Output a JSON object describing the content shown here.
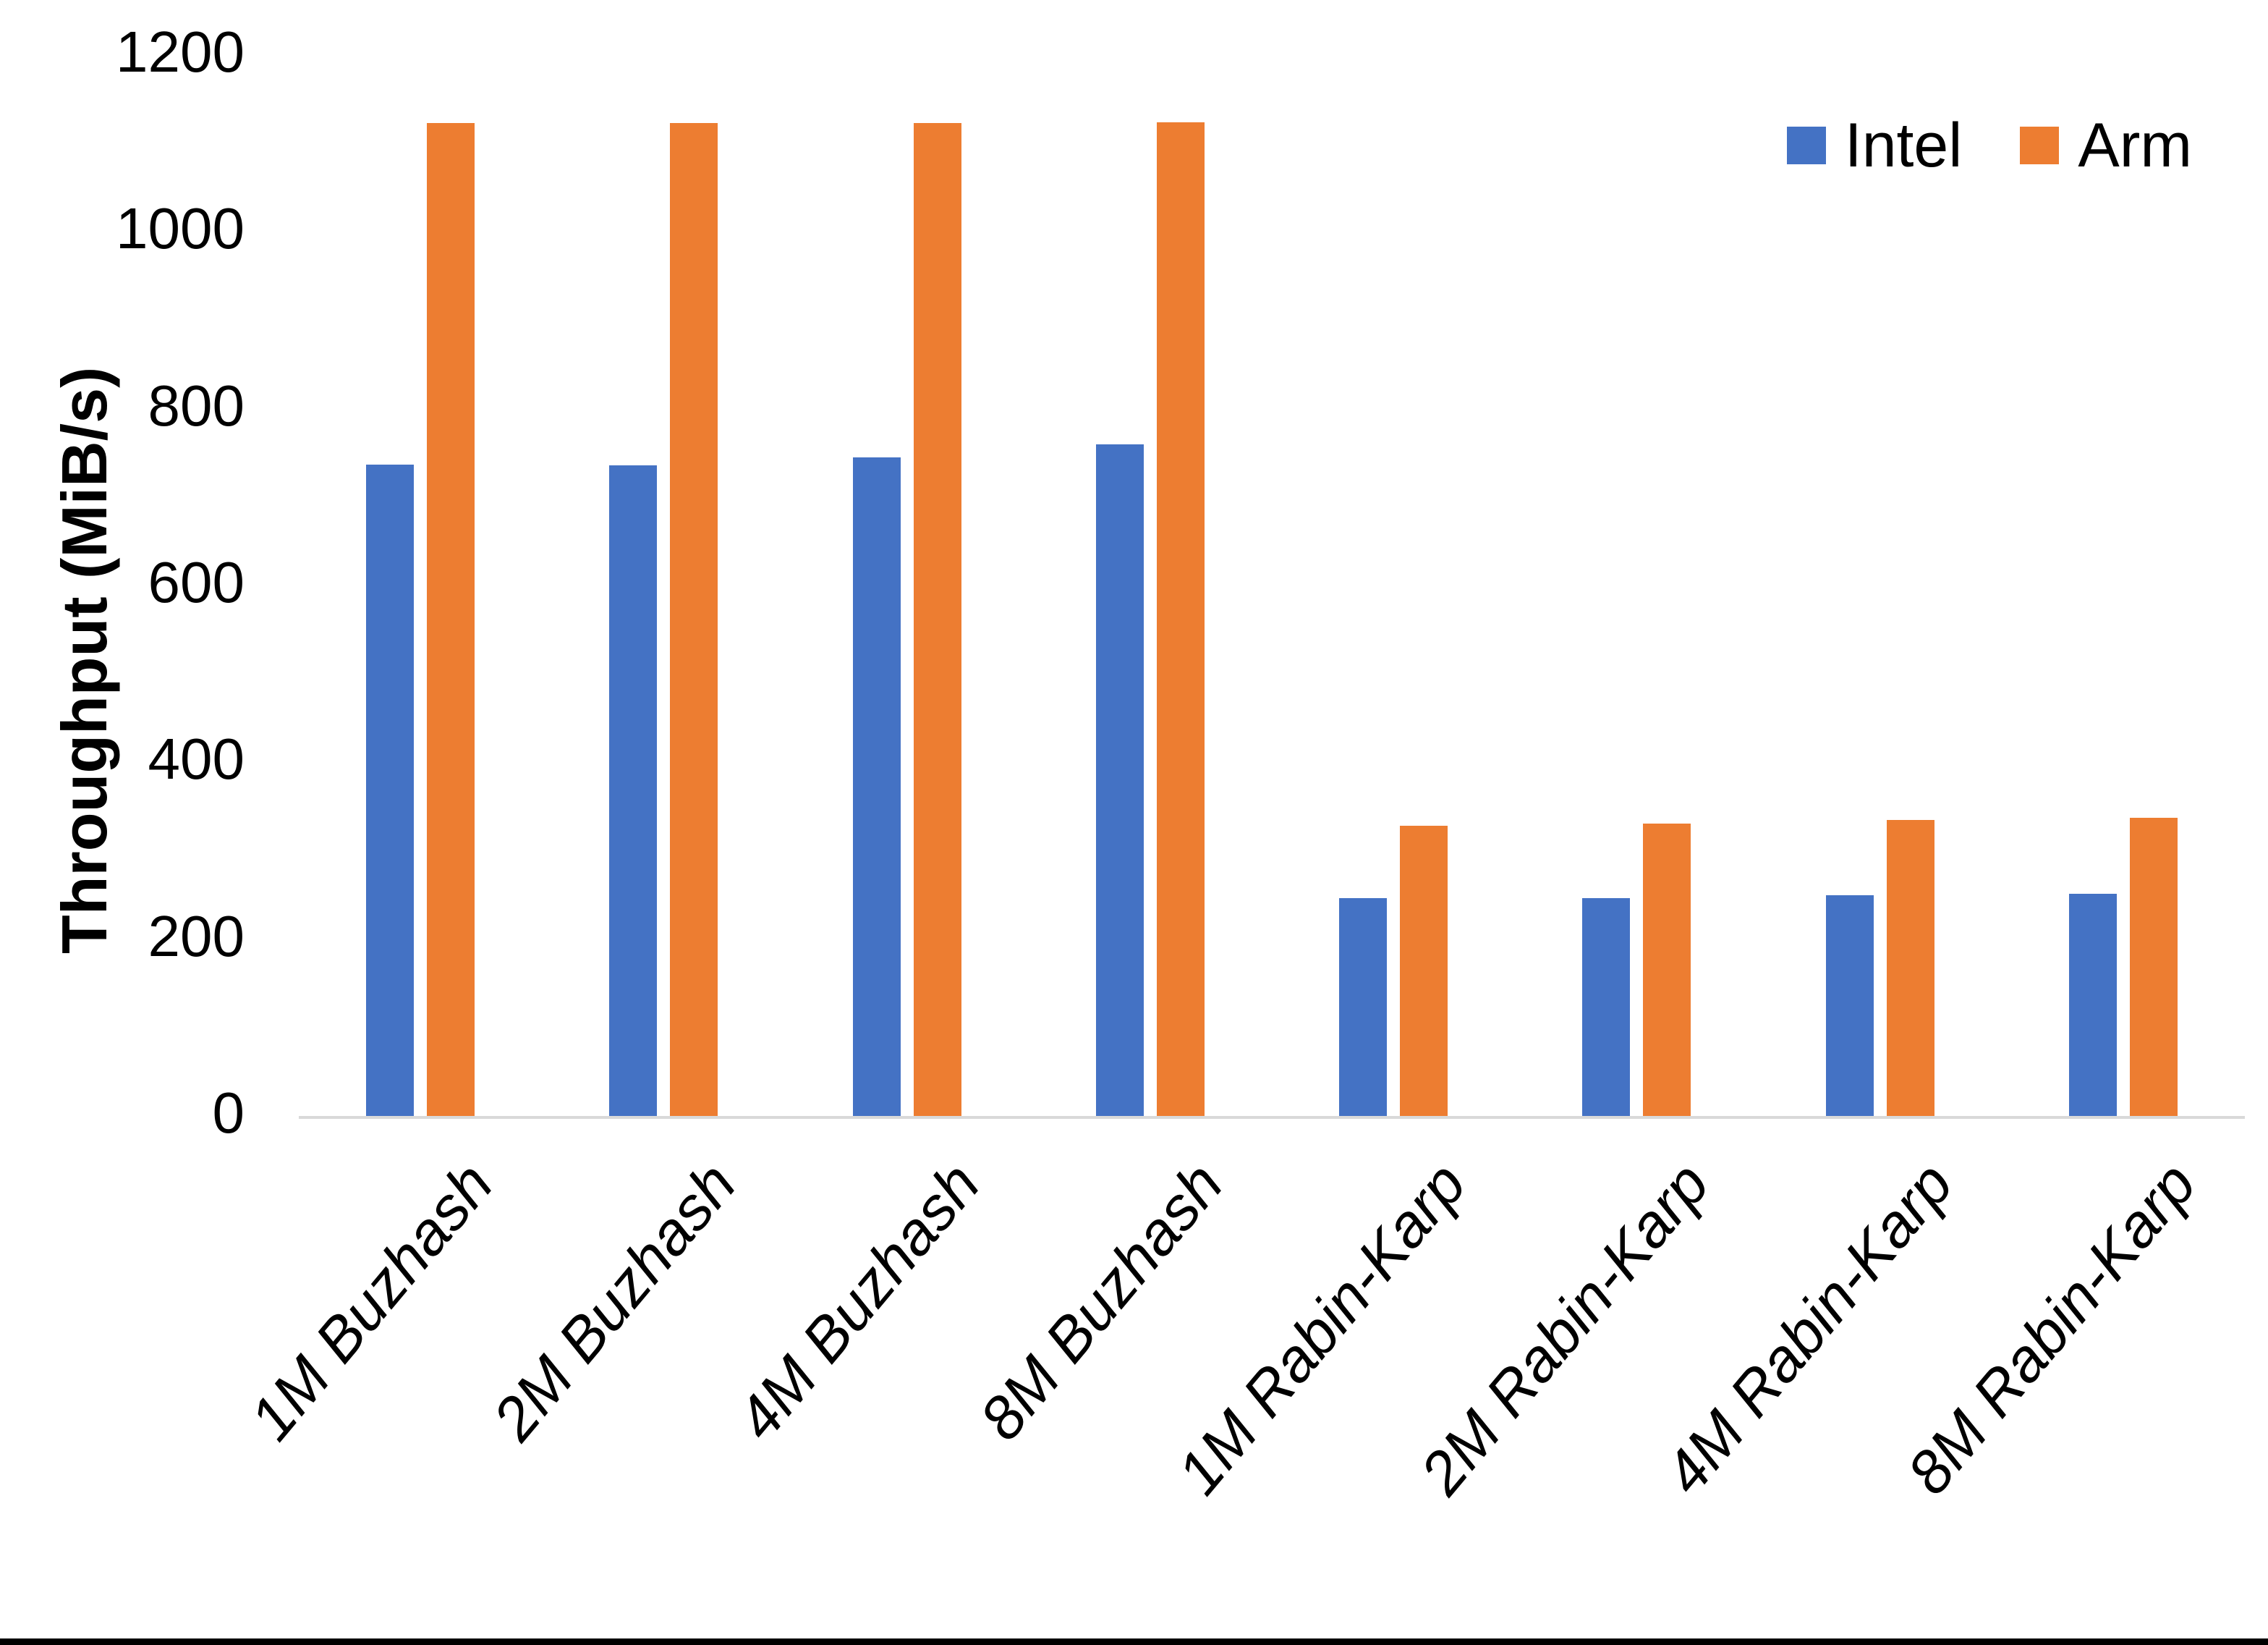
{
  "figure": {
    "background_color": "#ffffff",
    "axis_line_color": "#D9D9D9",
    "bottom_edge_color": "#000000",
    "text_color": "#000000"
  },
  "legend": {
    "position": "top-right",
    "items": [
      {
        "label": "Intel",
        "color": "#4472C4"
      },
      {
        "label": "Arm",
        "color": "#ED7D31"
      }
    ]
  },
  "chart_data": {
    "type": "bar",
    "title": "",
    "xlabel": "",
    "ylabel": "Throughput (MiB/s)",
    "categories": [
      "1M Buzhash",
      "2M Buzhash",
      "4M Buzhash",
      "8M Buzhash",
      "1M Rabin-Karp",
      "2M Rabin-Karp",
      "4M Rabin-Karp",
      "8M Rabin-Karp"
    ],
    "series": [
      {
        "name": "Intel",
        "color": "#4472C4",
        "values": [
          737,
          736,
          745,
          760,
          246,
          246,
          250,
          251
        ]
      },
      {
        "name": "Arm",
        "color": "#ED7D31",
        "values": [
          1123,
          1123,
          1123,
          1124,
          328,
          331,
          335,
          337
        ]
      }
    ],
    "ylim": [
      0,
      1200
    ],
    "yticks": [
      0,
      200,
      400,
      600,
      800,
      1000,
      1200
    ],
    "grid": false,
    "legend_position": "top-right",
    "x_tick_rotation_deg": -50,
    "x_tick_style": "italic"
  }
}
